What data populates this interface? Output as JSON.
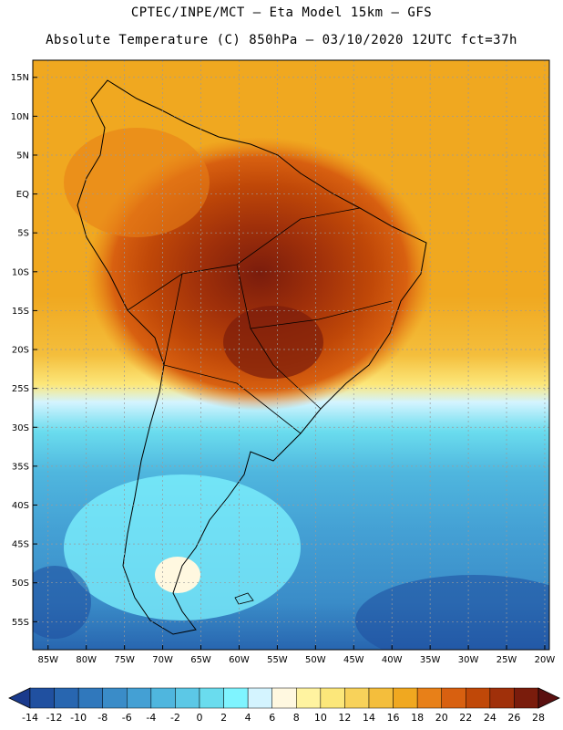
{
  "title_line1": "CPTEC/INPE/MCT –  Eta Model 15km – GFS",
  "title_line2": "Absolute Temperature (C) 850hPa – 03/10/2020 12UTC fct=37h",
  "lat_labels": [
    "15N",
    "10N",
    "5N",
    "EQ",
    "5S",
    "10S",
    "15S",
    "20S",
    "25S",
    "30S",
    "35S",
    "40S",
    "45S",
    "50S",
    "55S"
  ],
  "lat_values": [
    15,
    10,
    5,
    0,
    -5,
    -10,
    -15,
    -20,
    -25,
    -30,
    -35,
    -40,
    -45,
    -50,
    -55
  ],
  "lon_labels": [
    "85W",
    "80W",
    "75W",
    "70W",
    "65W",
    "60W",
    "55W",
    "50W",
    "45W",
    "40W",
    "35W",
    "30W",
    "25W",
    "20W"
  ],
  "lon_values": [
    -85,
    -80,
    -75,
    -70,
    -65,
    -60,
    -55,
    -50,
    -45,
    -40,
    -35,
    -30,
    -25,
    -20
  ],
  "colorbar": {
    "labels": [
      "-14",
      "-12",
      "-10",
      "-8",
      "-6",
      "-4",
      "-2",
      "0",
      "2",
      "4",
      "6",
      "8",
      "10",
      "12",
      "14",
      "16",
      "18",
      "20",
      "22",
      "24",
      "26",
      "28"
    ],
    "colors": [
      "#1a3a8c",
      "#2050a0",
      "#2866b0",
      "#3078bc",
      "#3a8cc8",
      "#44a0d4",
      "#4fb6de",
      "#5cc8e6",
      "#6adcee",
      "#7ff4ff",
      "#d4f4ff",
      "#fff8e0",
      "#fff3a0",
      "#fce77a",
      "#f8d25a",
      "#f4be3c",
      "#f0a820",
      "#e88018",
      "#d86010",
      "#c04808",
      "#a0300a",
      "#7a1c0c",
      "#5a1010"
    ]
  },
  "colors": {
    "land_outline": "#000000",
    "grid": "#9a9a9a"
  }
}
